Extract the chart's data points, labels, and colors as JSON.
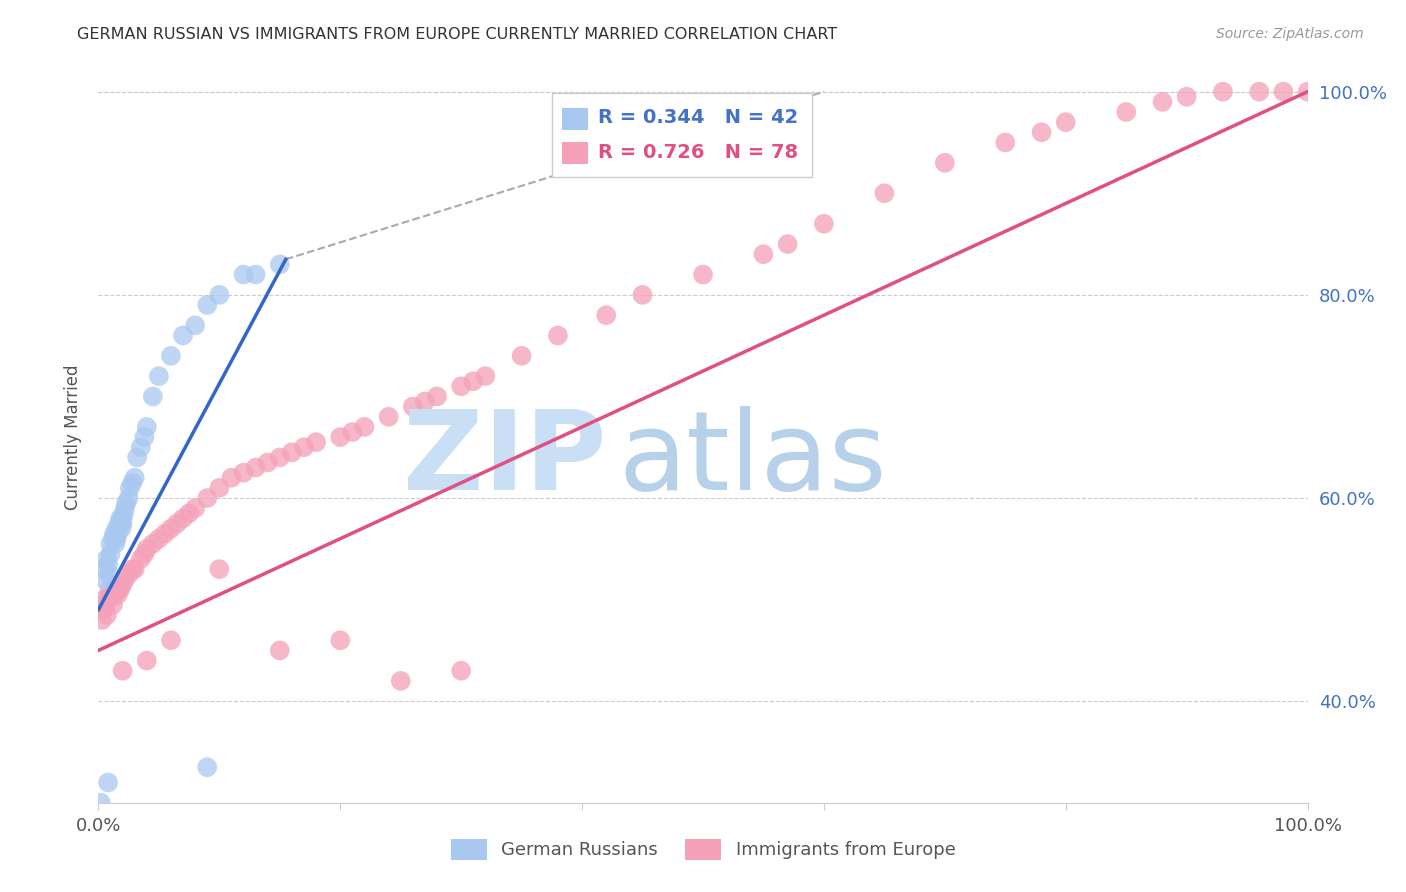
{
  "title": "GERMAN RUSSIAN VS IMMIGRANTS FROM EUROPE CURRENTLY MARRIED CORRELATION CHART",
  "source": "Source: ZipAtlas.com",
  "ylabel": "Currently Married",
  "xlim": [
    0,
    1.0
  ],
  "ylim": [
    0.3,
    1.02
  ],
  "x_tick_labels": [
    "0.0%",
    "",
    "",
    "",
    "",
    "100.0%"
  ],
  "x_tick_positions": [
    0.0,
    0.2,
    0.4,
    0.6,
    0.8,
    1.0
  ],
  "y_tick_labels_right": [
    "40.0%",
    "60.0%",
    "80.0%",
    "100.0%"
  ],
  "y_tick_positions_right": [
    0.4,
    0.6,
    0.8,
    1.0
  ],
  "background_color": "#ffffff",
  "legend_blue_r": "0.344",
  "legend_blue_n": "42",
  "legend_pink_r": "0.726",
  "legend_pink_n": "78",
  "blue_color": "#a8c8f0",
  "blue_line_color": "#3366cc",
  "pink_color": "#f4a0b8",
  "pink_line_color": "#e05080",
  "grid_color": "#cccccc",
  "title_color": "#333333",
  "right_axis_color": "#4472c4",
  "watermark_zip_color": "#c8dff5",
  "watermark_atlas_color": "#b0cce8",
  "blue_scatter_x": [
    0.005,
    0.006,
    0.007,
    0.008,
    0.009,
    0.01,
    0.01,
    0.012,
    0.013,
    0.014,
    0.015,
    0.015,
    0.016,
    0.017,
    0.018,
    0.019,
    0.02,
    0.02,
    0.021,
    0.022,
    0.023,
    0.025,
    0.026,
    0.028,
    0.03,
    0.032,
    0.035,
    0.038,
    0.04,
    0.045,
    0.05,
    0.06,
    0.07,
    0.08,
    0.09,
    0.1,
    0.12,
    0.13,
    0.15,
    0.002,
    0.008,
    0.09
  ],
  "blue_scatter_y": [
    0.52,
    0.53,
    0.54,
    0.535,
    0.525,
    0.545,
    0.555,
    0.56,
    0.565,
    0.555,
    0.56,
    0.57,
    0.565,
    0.575,
    0.58,
    0.57,
    0.575,
    0.58,
    0.585,
    0.59,
    0.595,
    0.6,
    0.61,
    0.615,
    0.62,
    0.64,
    0.65,
    0.66,
    0.67,
    0.7,
    0.72,
    0.74,
    0.76,
    0.77,
    0.79,
    0.8,
    0.82,
    0.82,
    0.83,
    0.3,
    0.32,
    0.335
  ],
  "pink_scatter_x": [
    0.003,
    0.004,
    0.005,
    0.006,
    0.007,
    0.008,
    0.009,
    0.01,
    0.012,
    0.013,
    0.014,
    0.015,
    0.016,
    0.018,
    0.02,
    0.022,
    0.025,
    0.028,
    0.03,
    0.035,
    0.038,
    0.04,
    0.045,
    0.05,
    0.055,
    0.06,
    0.065,
    0.07,
    0.075,
    0.08,
    0.09,
    0.1,
    0.11,
    0.12,
    0.13,
    0.14,
    0.15,
    0.16,
    0.17,
    0.18,
    0.2,
    0.21,
    0.22,
    0.24,
    0.26,
    0.27,
    0.28,
    0.3,
    0.31,
    0.32,
    0.35,
    0.38,
    0.42,
    0.45,
    0.5,
    0.55,
    0.57,
    0.6,
    0.65,
    0.7,
    0.75,
    0.78,
    0.8,
    0.85,
    0.88,
    0.9,
    0.93,
    0.96,
    0.98,
    1.0,
    0.02,
    0.04,
    0.06,
    0.1,
    0.15,
    0.2,
    0.3,
    0.25
  ],
  "pink_scatter_y": [
    0.48,
    0.49,
    0.5,
    0.495,
    0.485,
    0.5,
    0.51,
    0.505,
    0.495,
    0.505,
    0.51,
    0.515,
    0.505,
    0.51,
    0.515,
    0.52,
    0.525,
    0.53,
    0.53,
    0.54,
    0.545,
    0.55,
    0.555,
    0.56,
    0.565,
    0.57,
    0.575,
    0.58,
    0.585,
    0.59,
    0.6,
    0.61,
    0.62,
    0.625,
    0.63,
    0.635,
    0.64,
    0.645,
    0.65,
    0.655,
    0.66,
    0.665,
    0.67,
    0.68,
    0.69,
    0.695,
    0.7,
    0.71,
    0.715,
    0.72,
    0.74,
    0.76,
    0.78,
    0.8,
    0.82,
    0.84,
    0.85,
    0.87,
    0.9,
    0.93,
    0.95,
    0.96,
    0.97,
    0.98,
    0.99,
    0.995,
    1.0,
    1.0,
    1.0,
    1.0,
    0.43,
    0.44,
    0.46,
    0.53,
    0.45,
    0.46,
    0.43,
    0.42
  ],
  "blue_line_x": [
    0.0,
    0.155
  ],
  "blue_line_y": [
    0.49,
    0.835
  ],
  "pink_line_x": [
    0.0,
    1.0
  ],
  "pink_line_y": [
    0.45,
    1.0
  ],
  "dash_line_x": [
    0.155,
    0.6
  ],
  "dash_line_y": [
    0.835,
    1.0
  ]
}
